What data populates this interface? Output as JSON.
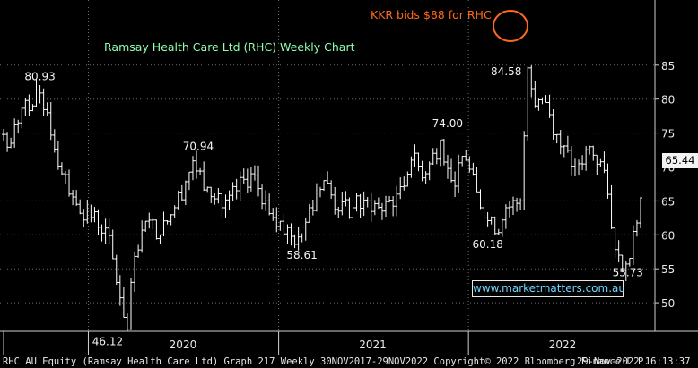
{
  "chart_data": {
    "type": "ohlc",
    "title": "Ramsay Health Care Ltd (RHC) Weekly Chart",
    "ticker": "RHC",
    "ylim": [
      43,
      88
    ],
    "y_ticks": [
      45,
      50,
      55,
      60,
      65,
      70,
      75,
      80,
      85
    ],
    "x_ticks": [
      "2020",
      "2021",
      "2022"
    ],
    "x_range": [
      "2019-07-22",
      "2022-11-28"
    ],
    "grid": true,
    "weekly_close": [
      {
        "date": "2019-07-22",
        "close": 74.8
      },
      {
        "date": "2019-08-05",
        "close": 73.5
      },
      {
        "date": "2019-08-19",
        "close": 76.5
      },
      {
        "date": "2019-09-02",
        "close": 79.8
      },
      {
        "date": "2019-09-16",
        "close": 79.0
      },
      {
        "date": "2019-09-30",
        "close": 80.9
      },
      {
        "date": "2019-10-14",
        "close": 78.0
      },
      {
        "date": "2019-11-11",
        "close": 69.0
      },
      {
        "date": "2019-11-25",
        "close": 66.0
      },
      {
        "date": "2019-12-09",
        "close": 64.5
      },
      {
        "date": "2020-02-03",
        "close": 61.0
      },
      {
        "date": "2020-03-16",
        "close": 46.1
      },
      {
        "date": "2020-03-23",
        "close": 53.0
      },
      {
        "date": "2020-04-20",
        "close": 62.0
      },
      {
        "date": "2020-05-18",
        "close": 60.0
      },
      {
        "date": "2020-06-15",
        "close": 64.0
      },
      {
        "date": "2020-07-20",
        "close": 70.9
      },
      {
        "date": "2020-08-17",
        "close": 67.0
      },
      {
        "date": "2020-09-14",
        "close": 64.0
      },
      {
        "date": "2020-10-12",
        "close": 66.5
      },
      {
        "date": "2020-11-09",
        "close": 69.0
      },
      {
        "date": "2020-12-07",
        "close": 65.0
      },
      {
        "date": "2021-01-04",
        "close": 62.0
      },
      {
        "date": "2021-02-01",
        "close": 58.6
      },
      {
        "date": "2021-03-01",
        "close": 64.0
      },
      {
        "date": "2021-03-29",
        "close": 68.0
      },
      {
        "date": "2021-04-26",
        "close": 63.5
      },
      {
        "date": "2021-05-24",
        "close": 64.0
      },
      {
        "date": "2021-06-21",
        "close": 65.0
      },
      {
        "date": "2021-07-19",
        "close": 63.5
      },
      {
        "date": "2021-08-16",
        "close": 66.0
      },
      {
        "date": "2021-09-13",
        "close": 71.0
      },
      {
        "date": "2021-10-11",
        "close": 69.0
      },
      {
        "date": "2021-11-08",
        "close": 74.0
      },
      {
        "date": "2021-11-29",
        "close": 68.0
      },
      {
        "date": "2021-12-27",
        "close": 71.0
      },
      {
        "date": "2022-01-24",
        "close": 64.0
      },
      {
        "date": "2022-02-21",
        "close": 60.2
      },
      {
        "date": "2022-03-14",
        "close": 64.0
      },
      {
        "date": "2022-04-11",
        "close": 65.0
      },
      {
        "date": "2022-04-25",
        "close": 84.6
      },
      {
        "date": "2022-05-09",
        "close": 79.0
      },
      {
        "date": "2022-05-30",
        "close": 79.5
      },
      {
        "date": "2022-06-27",
        "close": 73.0
      },
      {
        "date": "2022-07-25",
        "close": 70.0
      },
      {
        "date": "2022-08-22",
        "close": 73.0
      },
      {
        "date": "2022-09-19",
        "close": 69.5
      },
      {
        "date": "2022-10-03",
        "close": 61.0
      },
      {
        "date": "2022-10-17",
        "close": 57.0
      },
      {
        "date": "2022-10-31",
        "close": 55.7
      },
      {
        "date": "2022-11-14",
        "close": 60.5
      },
      {
        "date": "2022-11-28",
        "close": 65.44
      }
    ],
    "last_price": "65.44",
    "annotations": [
      {
        "text": "80.93",
        "date": "2019-09-30",
        "price": 80.93
      },
      {
        "text": "70.94",
        "date": "2020-07-20",
        "price": 70.94
      },
      {
        "text": "46.12",
        "date": "2020-03-16",
        "price": 46.12
      },
      {
        "text": "58.61",
        "date": "2021-02-01",
        "price": 58.61
      },
      {
        "text": "74.00",
        "date": "2021-11-08",
        "price": 74.0
      },
      {
        "text": "60.18",
        "date": "2022-02-21",
        "price": 60.18
      },
      {
        "text": "84.58",
        "date": "2022-04-25",
        "price": 84.58
      },
      {
        "text": "55.73",
        "date": "2022-10-31",
        "price": 55.73
      }
    ],
    "callout": "KKR bids $88 for RHC",
    "colors": {
      "background": "#000000",
      "bars": "#ffffff",
      "grid": "#6f6f6f",
      "title": "#8fffb0",
      "callout": "#ff6a1a",
      "url": "#6fd7ff"
    }
  },
  "watermark_url": "www.marketmatters.com.au",
  "footer": {
    "left": "RHC AU Equity (Ramsay Health Care Ltd) Graph 217  Weekly 30NOV2017-29NOV2022  Copyright© 2022 Bloomberg Finance L.P.",
    "right": "29-Nov-2022 16:13:37"
  }
}
